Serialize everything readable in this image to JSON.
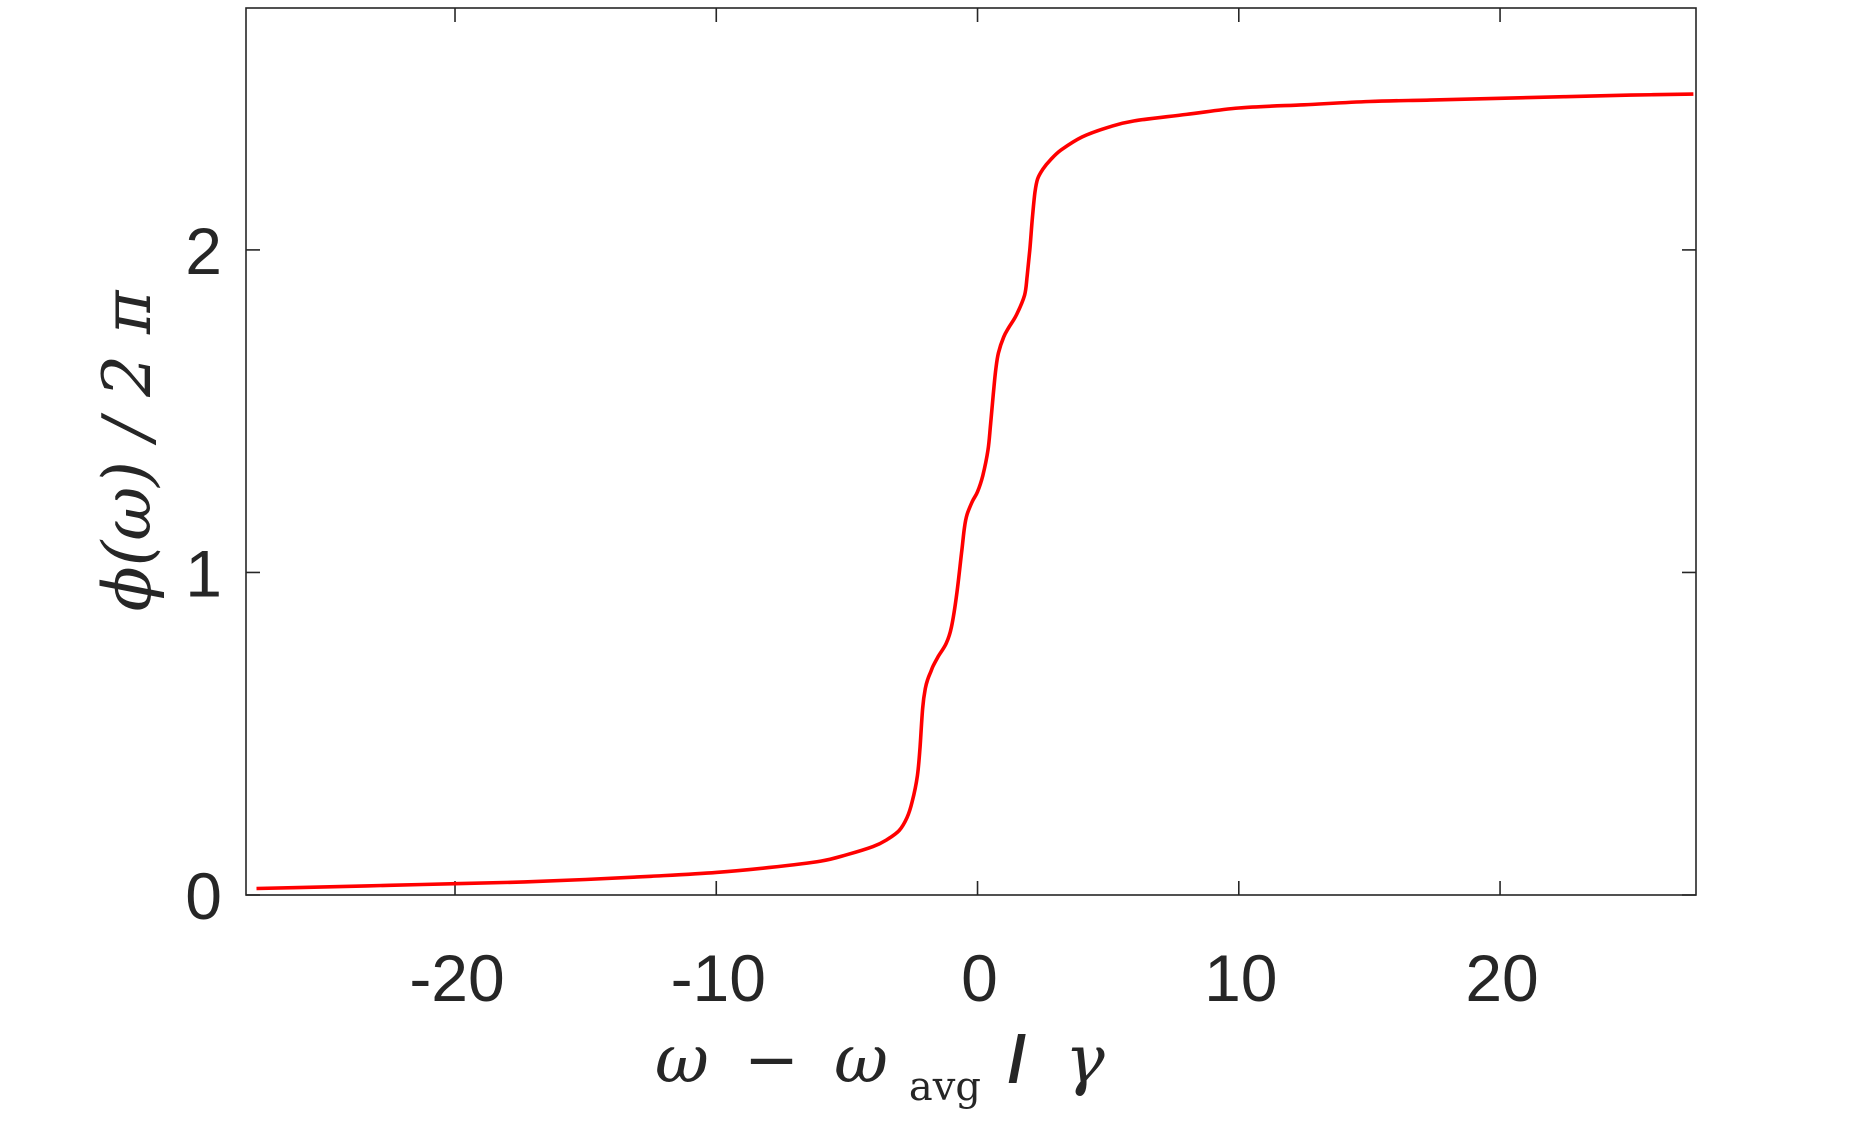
{
  "chart_data": {
    "type": "line",
    "title": "",
    "xlabel": "ω − ω_avg / γ",
    "xlabel_parts": {
      "omega": "ω",
      "minus": "−",
      "omega2": "ω",
      "subscript": "avg",
      "slash": "/",
      "gamma": "γ"
    },
    "ylabel": "ϕ(ω) / 2 π",
    "xlim": [
      -28,
      27.5
    ],
    "ylim": [
      0,
      2.75
    ],
    "xticks": [
      -20,
      -10,
      0,
      10,
      20
    ],
    "xtick_labels": [
      "-20",
      "-10",
      "0",
      "10",
      "20"
    ],
    "yticks": [
      0,
      1,
      2
    ],
    "ytick_labels": [
      "0",
      "1",
      "2"
    ],
    "grid": false,
    "box": true,
    "series": [
      {
        "color": "#ff0000",
        "x": [
          -27.6,
          -25,
          -22.5,
          -20,
          -17.5,
          -15,
          -12.5,
          -10,
          -8,
          -6,
          -5,
          -4,
          -3.5,
          -3,
          -2.7,
          -2.5,
          -2.3,
          -2.2,
          -2.1,
          -2.0,
          -1.9,
          -1.8,
          -1.7,
          -1.5,
          -1.2,
          -1.0,
          -0.8,
          -0.6,
          -0.5,
          -0.4,
          -0.2,
          0.0,
          0.2,
          0.4,
          0.5,
          0.6,
          0.7,
          0.8,
          1.0,
          1.2,
          1.5,
          1.8,
          1.9,
          2.0,
          2.1,
          2.2,
          2.3,
          2.5,
          2.8,
          3.2,
          4.0,
          5.0,
          6.0,
          8.0,
          10.0,
          12.5,
          15.0,
          17.5,
          20.0,
          22.5,
          25.0,
          27.4
        ],
        "y": [
          0.02,
          0.025,
          0.03,
          0.035,
          0.04,
          0.048,
          0.058,
          0.07,
          0.085,
          0.105,
          0.125,
          0.15,
          0.17,
          0.2,
          0.24,
          0.29,
          0.37,
          0.46,
          0.58,
          0.64,
          0.67,
          0.69,
          0.71,
          0.74,
          0.78,
          0.83,
          0.93,
          1.07,
          1.14,
          1.18,
          1.22,
          1.25,
          1.3,
          1.38,
          1.46,
          1.55,
          1.63,
          1.68,
          1.73,
          1.76,
          1.8,
          1.86,
          1.92,
          2.0,
          2.1,
          2.18,
          2.22,
          2.25,
          2.28,
          2.31,
          2.35,
          2.38,
          2.4,
          2.42,
          2.44,
          2.45,
          2.46,
          2.465,
          2.47,
          2.475,
          2.48,
          2.483
        ]
      }
    ]
  }
}
